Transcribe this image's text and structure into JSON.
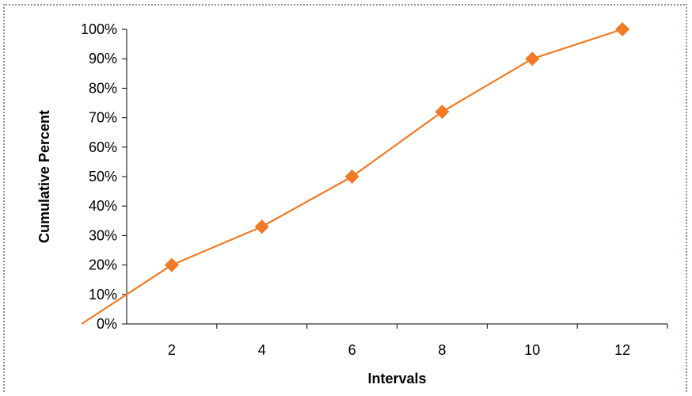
{
  "chart_data": {
    "type": "line",
    "xlabel": "Intervals",
    "ylabel": "Cumulative Percent",
    "x": [
      0,
      2,
      4,
      6,
      8,
      10,
      12
    ],
    "series": [
      {
        "values": [
          0,
          20,
          33,
          50,
          72,
          90,
          100
        ],
        "color": "#f07a25",
        "marker": "diamond"
      }
    ],
    "x_tick_labels": [
      "2",
      "4",
      "6",
      "8",
      "10",
      "12"
    ],
    "y_tick_labels": [
      "0%",
      "10%",
      "20%",
      "30%",
      "40%",
      "50%",
      "60%",
      "70%",
      "80%",
      "90%",
      "100%"
    ],
    "ylim": [
      0,
      100
    ],
    "grid": false,
    "legend": "none"
  }
}
